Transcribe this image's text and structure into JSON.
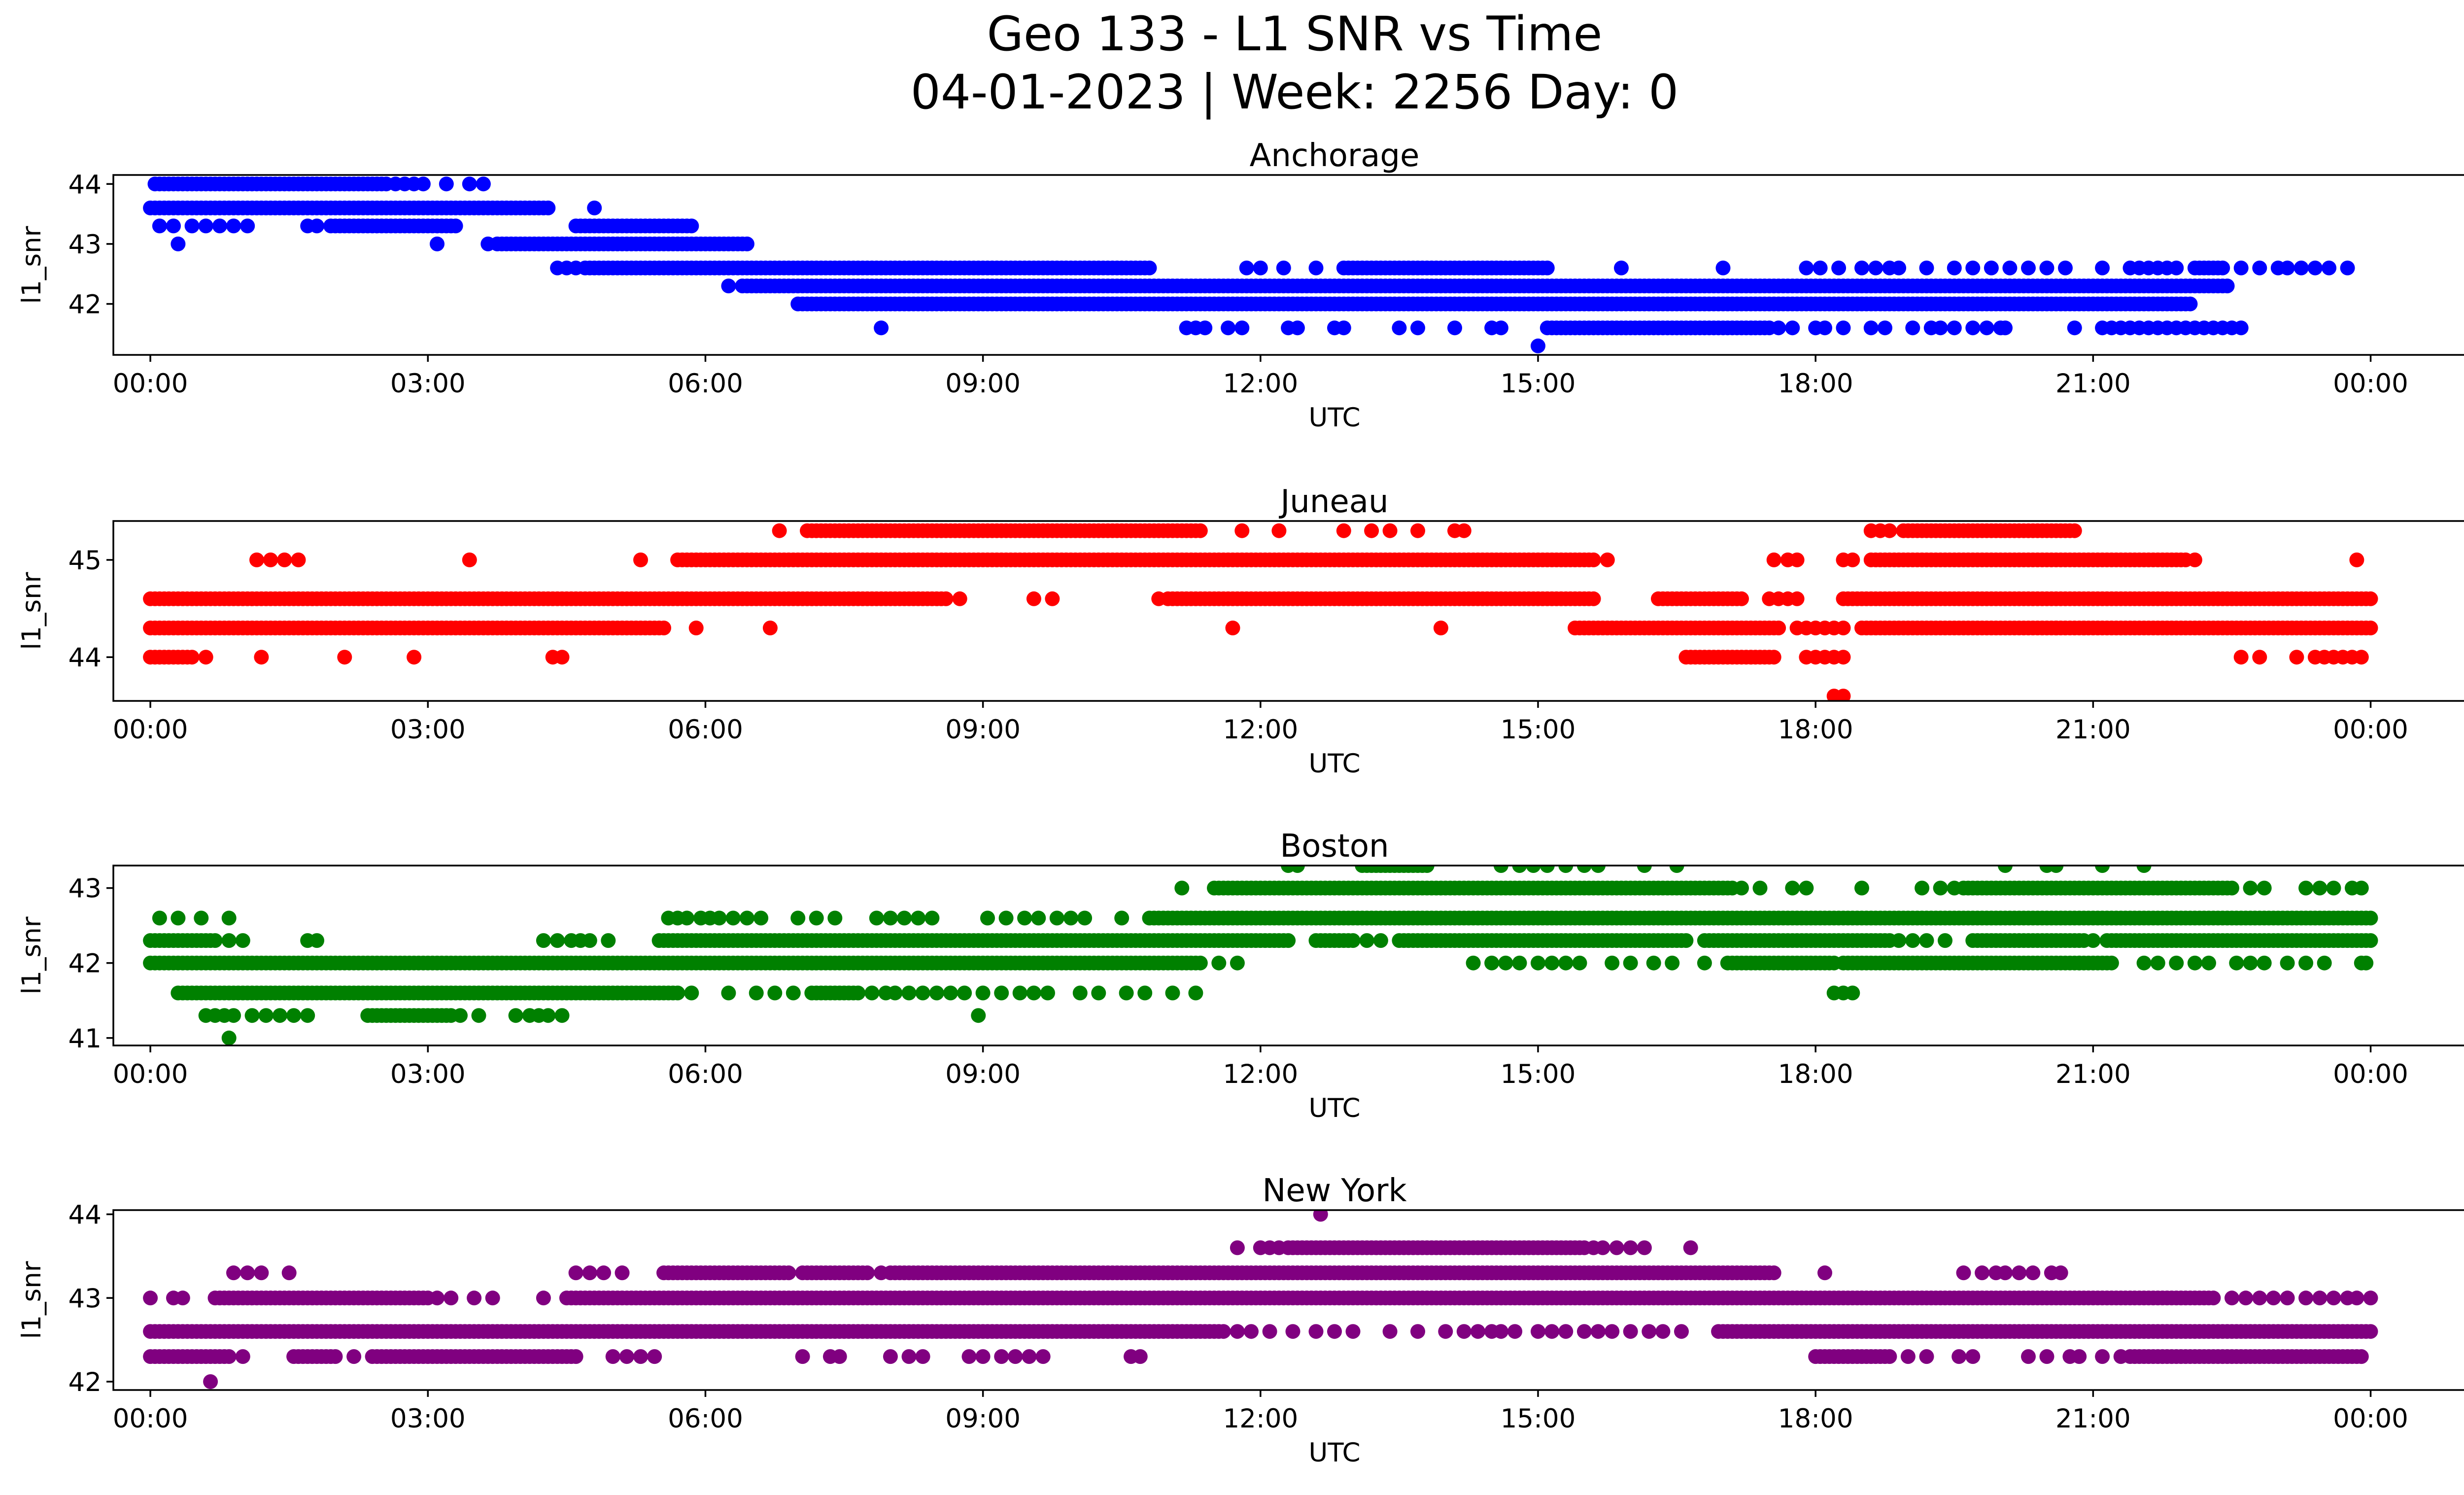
{
  "title_line1": "Geo 133 - L1 SNR vs Time",
  "title_line2": "04-01-2023 | Week: 2256 Day: 0",
  "chart_data": [
    {
      "type": "scatter",
      "title": "Anchorage",
      "xlabel": "UTC",
      "ylabel": "l1_snr",
      "color": "#0000ff",
      "xlim_hours": [
        -0.4,
        26.0
      ],
      "ylim": [
        41.15,
        44.15
      ],
      "yticks": [
        "42",
        "43",
        "44"
      ],
      "xticks": [
        "00:00",
        "03:00",
        "06:00",
        "09:00",
        "12:00",
        "15:00",
        "18:00",
        "21:00",
        "00:00"
      ],
      "series": [
        {
          "y": 44.0,
          "x_ranges": [
            [
              0.05,
              2.55
            ]
          ],
          "x_points": [
            2.65,
            2.75,
            2.85,
            2.95,
            3.2,
            3.45,
            3.6
          ]
        },
        {
          "y": 43.6,
          "x_ranges": [
            [
              0.0,
              4.3
            ]
          ],
          "x_points": [
            4.8
          ]
        },
        {
          "y": 43.3,
          "x_ranges": [
            [
              1.95,
              3.3
            ],
            [
              4.6,
              5.85
            ]
          ],
          "x_points": [
            0.1,
            0.25,
            0.45,
            0.6,
            0.75,
            0.9,
            1.05,
            1.7,
            1.8
          ]
        },
        {
          "y": 43.0,
          "x_ranges": [
            [
              3.75,
              6.45
            ]
          ],
          "x_points": [
            0.3,
            3.1,
            3.65
          ]
        },
        {
          "y": 42.6,
          "x_ranges": [
            [
              4.7,
              10.8
            ],
            [
              12.9,
              15.1
            ],
            [
              22.1,
              22.4
            ]
          ],
          "x_points": [
            4.4,
            4.5,
            4.6,
            11.85,
            12.0,
            12.25,
            12.6,
            15.9,
            17.0,
            17.9,
            18.05,
            18.25,
            18.5,
            18.65,
            18.8,
            18.9,
            19.2,
            19.5,
            19.7,
            19.9,
            20.1,
            20.3,
            20.5,
            20.7,
            21.1,
            21.4,
            21.5,
            21.6,
            21.7,
            21.8,
            21.9,
            22.6,
            22.8,
            23.0,
            23.1,
            23.25,
            23.4,
            23.55,
            23.75
          ]
        },
        {
          "y": 42.3,
          "x_ranges": [
            [
              6.4,
              22.45
            ]
          ],
          "x_points": [
            6.25
          ]
        },
        {
          "y": 42.0,
          "x_ranges": [
            [
              7.0,
              22.05
            ]
          ],
          "x_points": []
        },
        {
          "y": 41.6,
          "x_ranges": [
            [
              15.1,
              17.5
            ]
          ],
          "x_points": [
            7.9,
            11.2,
            11.3,
            11.4,
            11.65,
            11.8,
            12.3,
            12.4,
            12.8,
            12.9,
            13.5,
            13.7,
            14.1,
            14.5,
            14.6,
            17.6,
            17.75,
            18.0,
            18.1,
            18.3,
            18.6,
            18.75,
            19.05,
            19.25,
            19.35,
            19.5,
            19.7,
            19.85,
            20.0,
            20.05,
            20.8,
            21.1,
            21.2,
            21.3,
            21.4,
            21.5,
            21.6,
            21.7,
            21.8,
            21.9,
            22.0,
            22.1,
            22.2,
            22.3,
            22.4,
            22.5,
            22.6
          ]
        },
        {
          "y": 41.3,
          "x_ranges": [],
          "x_points": [
            15.0
          ]
        }
      ]
    },
    {
      "type": "scatter",
      "title": "Juneau",
      "xlabel": "UTC",
      "ylabel": "l1_snr",
      "color": "#ff0000",
      "xlim_hours": [
        -0.4,
        26.0
      ],
      "ylim": [
        43.55,
        45.4
      ],
      "yticks": [
        "44",
        "45"
      ],
      "xticks": [
        "00:00",
        "03:00",
        "06:00",
        "09:00",
        "12:00",
        "15:00",
        "18:00",
        "21:00",
        "00:00"
      ],
      "series": [
        {
          "y": 45.3,
          "x_ranges": [
            [
              7.1,
              11.35
            ],
            [
              18.95,
              20.8
            ]
          ],
          "x_points": [
            6.8,
            11.8,
            12.2,
            12.9,
            13.2,
            13.4,
            13.7,
            14.1,
            14.2,
            18.6,
            18.7,
            18.8
          ]
        },
        {
          "y": 45.0,
          "x_ranges": [
            [
              5.7,
              15.6
            ],
            [
              18.6,
              22.0
            ]
          ],
          "x_points": [
            1.15,
            1.3,
            1.45,
            1.6,
            3.45,
            5.3,
            15.75,
            17.55,
            17.7,
            17.8,
            18.3,
            18.4,
            22.1,
            23.85
          ]
        },
        {
          "y": 44.6,
          "x_ranges": [
            [
              0.0,
              8.6
            ],
            [
              11.0,
              15.6
            ],
            [
              16.3,
              17.2
            ],
            [
              18.3,
              24.0
            ]
          ],
          "x_points": [
            8.75,
            9.55,
            9.75,
            10.9,
            17.5,
            17.6,
            17.7,
            17.8
          ]
        },
        {
          "y": 44.3,
          "x_ranges": [
            [
              0.0,
              5.55
            ],
            [
              15.4,
              17.6
            ],
            [
              18.5,
              24.0
            ]
          ],
          "x_points": [
            5.9,
            6.7,
            11.7,
            13.95,
            17.8,
            17.9,
            18.0,
            18.1,
            18.2,
            18.3,
            20.6,
            20.9
          ]
        },
        {
          "y": 44.0,
          "x_ranges": [
            [
              0.0,
              0.45
            ],
            [
              16.6,
              17.55
            ]
          ],
          "x_points": [
            0.6,
            1.2,
            2.1,
            2.85,
            4.35,
            4.45,
            17.9,
            18.0,
            18.1,
            18.2,
            18.3,
            22.6,
            22.8,
            23.2,
            23.4,
            23.5,
            23.6,
            23.7,
            23.8,
            23.9
          ]
        },
        {
          "y": 43.6,
          "x_ranges": [],
          "x_points": [
            18.2,
            18.3
          ]
        }
      ]
    },
    {
      "type": "scatter",
      "title": "Boston",
      "xlabel": "UTC",
      "ylabel": "l1_snr",
      "color": "#008000",
      "xlim_hours": [
        -0.4,
        26.0
      ],
      "ylim": [
        40.9,
        43.3
      ],
      "yticks": [
        "41",
        "42",
        "43"
      ],
      "xticks": [
        "00:00",
        "03:00",
        "06:00",
        "09:00",
        "12:00",
        "15:00",
        "18:00",
        "21:00",
        "00:00"
      ],
      "series": [
        {
          "y": 43.3,
          "x_ranges": [
            [
              13.1,
              13.8
            ]
          ],
          "x_points": [
            12.3,
            12.4,
            14.6,
            14.8,
            14.95,
            15.1,
            15.3,
            15.5,
            15.65,
            16.15,
            16.5,
            20.05,
            20.5,
            20.6,
            21.1,
            21.55
          ]
        },
        {
          "y": 43.0,
          "x_ranges": [
            [
              11.5,
              17.1
            ],
            [
              19.6,
              22.5
            ]
          ],
          "x_points": [
            11.15,
            17.2,
            17.4,
            17.75,
            17.9,
            18.5,
            19.15,
            19.35,
            19.5,
            22.7,
            22.85,
            23.3,
            23.45,
            23.6,
            23.8,
            23.9
          ]
        },
        {
          "y": 42.6,
          "x_ranges": [
            [
              10.8,
              24.0
            ]
          ],
          "x_points": [
            0.1,
            0.3,
            0.55,
            0.85,
            5.6,
            5.7,
            5.8,
            5.95,
            6.05,
            6.15,
            6.3,
            6.45,
            6.6,
            7.0,
            7.2,
            7.4,
            7.85,
            8.0,
            8.15,
            8.3,
            8.45,
            9.05,
            9.25,
            9.45,
            9.6,
            9.8,
            9.95,
            10.1,
            10.5
          ]
        },
        {
          "y": 42.3,
          "x_ranges": [
            [
              0.0,
              0.7
            ],
            [
              5.5,
              12.3
            ],
            [
              12.6,
              13.0
            ],
            [
              13.5,
              16.6
            ],
            [
              16.8,
              18.8
            ],
            [
              19.7,
              20.9
            ],
            [
              21.15,
              24.0
            ]
          ],
          "x_points": [
            0.85,
            1.0,
            1.7,
            1.8,
            4.25,
            4.4,
            4.55,
            4.65,
            4.75,
            4.95,
            13.15,
            13.3,
            18.9,
            19.05,
            19.2,
            19.4,
            21.0
          ]
        },
        {
          "y": 42.0,
          "x_ranges": [
            [
              0.0,
              11.35
            ],
            [
              17.05,
              18.2
            ],
            [
              18.3,
              21.2
            ]
          ],
          "x_points": [
            11.55,
            11.75,
            14.3,
            14.5,
            14.65,
            14.8,
            15.0,
            15.15,
            15.3,
            15.45,
            15.8,
            16.0,
            16.25,
            16.45,
            16.8,
            20.85,
            21.55,
            21.7,
            21.9,
            22.1,
            22.25,
            22.55,
            22.7,
            22.85,
            23.1,
            23.3,
            23.5,
            23.9,
            23.95
          ]
        },
        {
          "y": 41.6,
          "x_ranges": [
            [
              0.3,
              5.7
            ],
            [
              7.15,
              7.65
            ]
          ],
          "x_points": [
            5.85,
            6.25,
            6.55,
            6.75,
            6.95,
            7.8,
            7.95,
            8.05,
            8.2,
            8.35,
            8.5,
            8.65,
            8.8,
            9.0,
            9.2,
            9.4,
            9.55,
            9.7,
            10.05,
            10.25,
            10.55,
            10.75,
            11.05,
            11.3,
            18.2,
            18.3,
            18.4
          ]
        },
        {
          "y": 41.3,
          "x_ranges": [
            [
              2.35,
              3.25
            ]
          ],
          "x_points": [
            0.6,
            0.7,
            0.8,
            0.9,
            1.1,
            1.25,
            1.4,
            1.55,
            1.7,
            3.35,
            3.55,
            3.95,
            4.1,
            4.2,
            4.3,
            4.45,
            8.95
          ]
        },
        {
          "y": 41.0,
          "x_ranges": [],
          "x_points": [
            0.85
          ]
        }
      ]
    },
    {
      "type": "scatter",
      "title": "New York",
      "xlabel": "UTC",
      "ylabel": "l1_snr",
      "color": "#800080",
      "xlim_hours": [
        -0.4,
        26.0
      ],
      "ylim": [
        41.9,
        44.05
      ],
      "yticks": [
        "42",
        "43",
        "44"
      ],
      "xticks": [
        "00:00",
        "03:00",
        "06:00",
        "09:00",
        "12:00",
        "15:00",
        "18:00",
        "21:00",
        "00:00"
      ],
      "series": [
        {
          "y": 44.0,
          "x_ranges": [],
          "x_points": [
            12.65
          ]
        },
        {
          "y": 43.6,
          "x_ranges": [
            [
              12.3,
              15.5
            ]
          ],
          "x_points": [
            11.75,
            12.0,
            12.1,
            12.2,
            15.6,
            15.7,
            15.85,
            16.0,
            16.15,
            16.65
          ]
        },
        {
          "y": 43.3,
          "x_ranges": [
            [
              5.55,
              6.9
            ],
            [
              7.05,
              7.75
            ],
            [
              8.0,
              17.55
            ]
          ],
          "x_points": [
            0.9,
            1.05,
            1.2,
            1.5,
            4.6,
            4.75,
            4.9,
            5.1,
            7.9,
            18.1,
            19.6,
            19.8,
            19.95,
            20.05,
            20.2,
            20.35,
            20.55,
            20.65
          ]
        },
        {
          "y": 43.0,
          "x_ranges": [
            [
              0.7,
              3.0
            ],
            [
              4.5,
              22.3
            ]
          ],
          "x_points": [
            0.0,
            0.25,
            0.35,
            3.1,
            3.25,
            3.5,
            3.7,
            4.25,
            22.5,
            22.65,
            22.8,
            22.95,
            23.1,
            23.3,
            23.45,
            23.6,
            23.75,
            23.85,
            24.0
          ]
        },
        {
          "y": 42.6,
          "x_ranges": [
            [
              0.0,
              11.6
            ],
            [
              16.95,
              24.0
            ]
          ],
          "x_points": [
            11.75,
            11.9,
            12.1,
            12.35,
            12.6,
            12.8,
            13.0,
            13.4,
            13.7,
            14.0,
            14.2,
            14.35,
            14.5,
            14.6,
            14.75,
            15.0,
            15.15,
            15.3,
            15.5,
            15.65,
            15.8,
            16.0,
            16.2,
            16.35,
            16.55
          ]
        },
        {
          "y": 42.3,
          "x_ranges": [
            [
              0.0,
              0.85
            ],
            [
              1.55,
              2.0
            ],
            [
              2.4,
              4.6
            ],
            [
              18.0,
              18.8
            ],
            [
              21.4,
              23.9
            ]
          ],
          "x_points": [
            1.0,
            2.2,
            5.0,
            5.15,
            5.3,
            5.45,
            7.05,
            7.35,
            7.45,
            8.0,
            8.2,
            8.35,
            8.85,
            9.0,
            9.2,
            9.35,
            9.5,
            9.65,
            10.6,
            10.7,
            19.0,
            19.2,
            19.55,
            19.7,
            20.3,
            20.5,
            20.75,
            20.85,
            21.1,
            21.3
          ]
        },
        {
          "y": 42.0,
          "x_ranges": [],
          "x_points": [
            0.65
          ]
        }
      ]
    }
  ]
}
